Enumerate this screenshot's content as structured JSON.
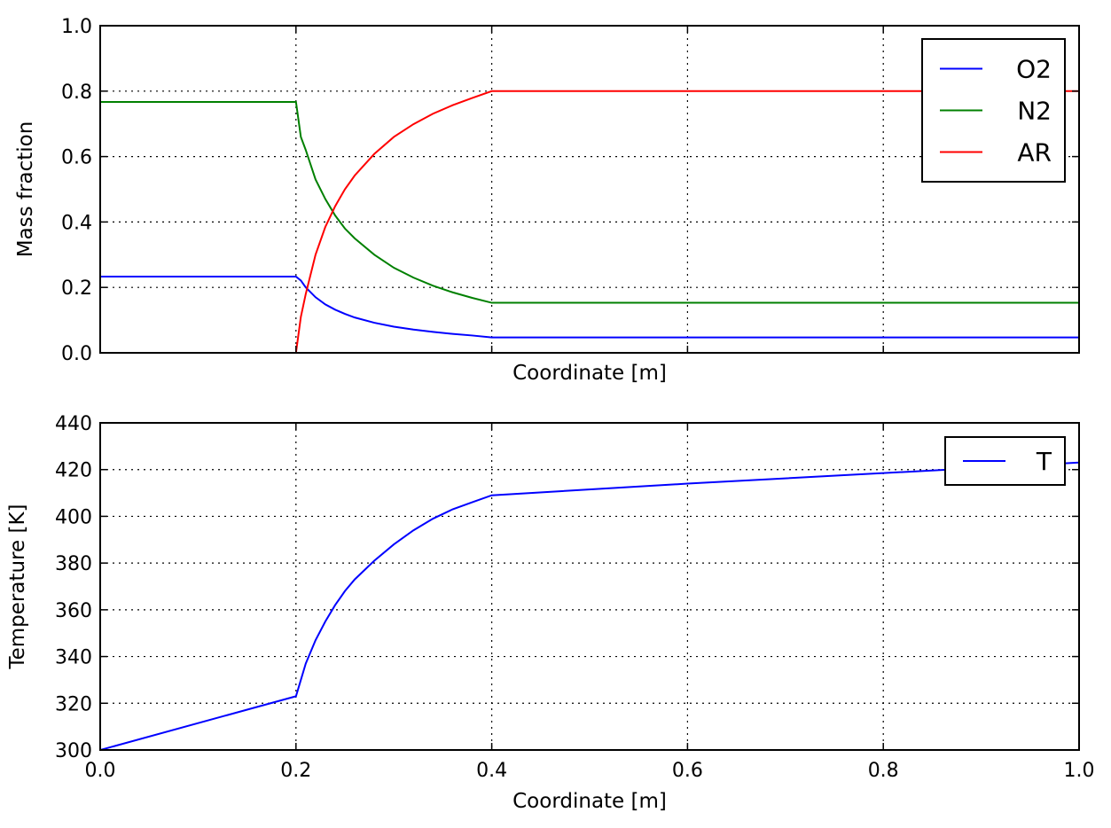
{
  "chart_data": [
    {
      "type": "line",
      "title": "",
      "xlabel": "Coordinate [m]",
      "ylabel": "Mass fraction",
      "xlim": [
        0.0,
        1.0
      ],
      "ylim": [
        0.0,
        1.0
      ],
      "xticks": [
        "0.0",
        "0.2",
        "0.4",
        "0.6",
        "0.8",
        "1.0"
      ],
      "show_xtick_labels": false,
      "yticks": [
        "0.0",
        "0.2",
        "0.4",
        "0.6",
        "0.8",
        "1.0"
      ],
      "grid": true,
      "legend_position": "upper-right",
      "series": [
        {
          "name": "O2",
          "color": "#0000ff",
          "x": [
            0.0,
            0.2,
            0.205,
            0.21,
            0.22,
            0.23,
            0.24,
            0.25,
            0.26,
            0.28,
            0.3,
            0.32,
            0.34,
            0.36,
            0.38,
            0.4,
            1.0
          ],
          "y": [
            0.233,
            0.233,
            0.221,
            0.2,
            0.17,
            0.148,
            0.132,
            0.119,
            0.108,
            0.092,
            0.08,
            0.071,
            0.064,
            0.058,
            0.053,
            0.047,
            0.047
          ]
        },
        {
          "name": "N2",
          "color": "#008000",
          "x": [
            0.0,
            0.2,
            0.205,
            0.21,
            0.22,
            0.23,
            0.24,
            0.25,
            0.26,
            0.28,
            0.3,
            0.32,
            0.34,
            0.36,
            0.38,
            0.4,
            1.0
          ],
          "y": [
            0.767,
            0.767,
            0.66,
            0.62,
            0.53,
            0.47,
            0.42,
            0.38,
            0.35,
            0.3,
            0.26,
            0.23,
            0.205,
            0.185,
            0.168,
            0.153,
            0.153
          ]
        },
        {
          "name": "AR",
          "color": "#ff0000",
          "x": [
            0.0,
            0.2,
            0.205,
            0.21,
            0.22,
            0.23,
            0.24,
            0.25,
            0.26,
            0.28,
            0.3,
            0.32,
            0.34,
            0.36,
            0.38,
            0.4,
            1.0
          ],
          "y": [
            0.0,
            0.0,
            0.11,
            0.18,
            0.3,
            0.385,
            0.448,
            0.5,
            0.542,
            0.608,
            0.66,
            0.699,
            0.731,
            0.757,
            0.779,
            0.8,
            0.8
          ]
        }
      ]
    },
    {
      "type": "line",
      "title": "",
      "xlabel": "Coordinate [m]",
      "ylabel": "Temperature [K]",
      "xlim": [
        0.0,
        1.0
      ],
      "ylim": [
        300,
        440
      ],
      "xticks": [
        "0.0",
        "0.2",
        "0.4",
        "0.6",
        "0.8",
        "1.0"
      ],
      "show_xtick_labels": true,
      "yticks": [
        "300",
        "320",
        "340",
        "360",
        "380",
        "400",
        "420",
        "440"
      ],
      "grid": true,
      "legend_position": "upper-right",
      "series": [
        {
          "name": "T",
          "color": "#0000ff",
          "x": [
            0.0,
            0.2,
            0.205,
            0.21,
            0.22,
            0.23,
            0.24,
            0.25,
            0.26,
            0.28,
            0.3,
            0.32,
            0.34,
            0.36,
            0.38,
            0.4,
            0.6,
            0.8,
            1.0
          ],
          "y": [
            300,
            323,
            330,
            337,
            347,
            355,
            362,
            368,
            373,
            381,
            388,
            394,
            399,
            403,
            406,
            409,
            414,
            418.5,
            423
          ]
        }
      ]
    }
  ]
}
